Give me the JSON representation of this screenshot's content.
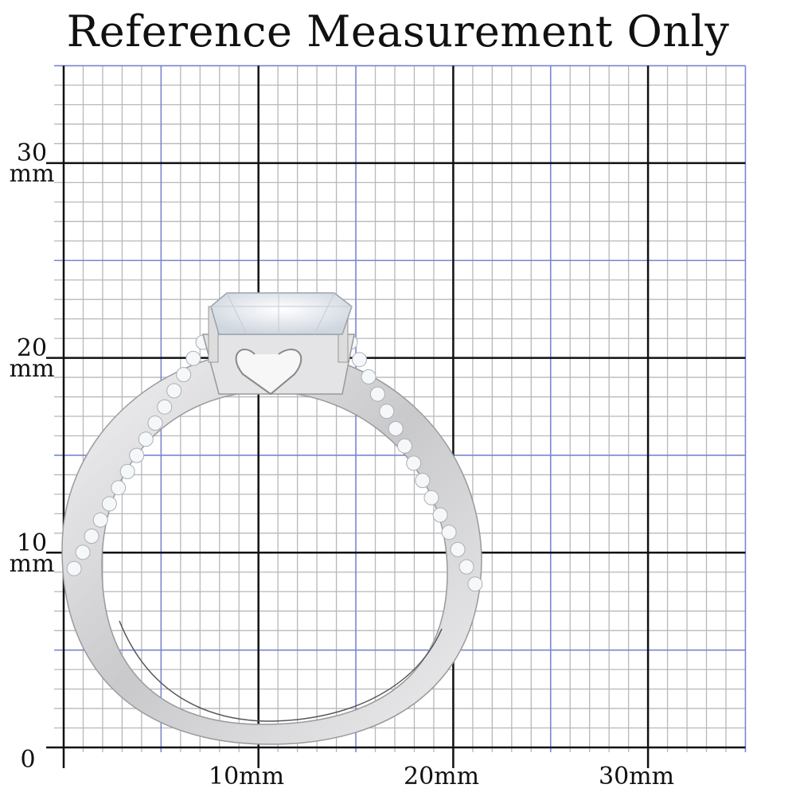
{
  "title": "Reference Measurement Only",
  "grid": {
    "range_mm": [
      0,
      35
    ],
    "minor_step_mm": 1,
    "mid_step_mm": 5,
    "major_step_mm": 10,
    "colors": {
      "minor": "#b8b8bc",
      "mid": "#7a86d0",
      "major": "#111111"
    }
  },
  "y_labels": [
    {
      "value": "30",
      "unit": "mm"
    },
    {
      "value": "20",
      "unit": "mm"
    },
    {
      "value": "10",
      "unit": "mm"
    },
    {
      "value": "0",
      "unit": ""
    }
  ],
  "x_labels": [
    "10mm",
    "20mm",
    "30mm"
  ],
  "subject": {
    "type": "ring",
    "metal_color": "#d9d9db",
    "stone_color": "#eef2f6"
  }
}
